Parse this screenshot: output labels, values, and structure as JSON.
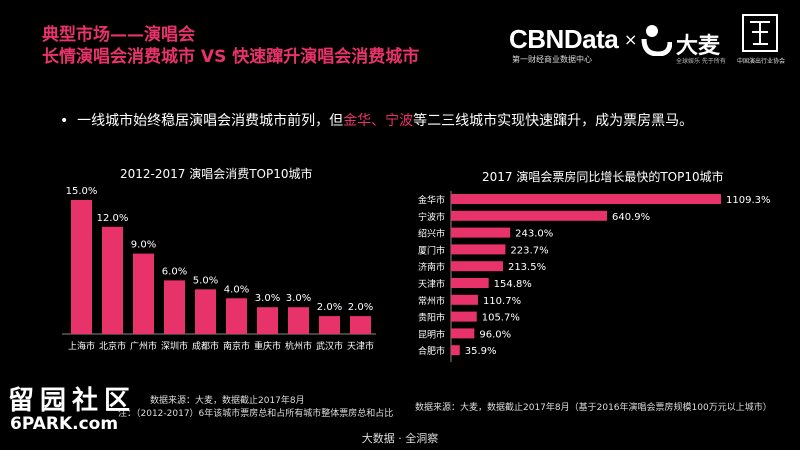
{
  "header": {
    "title_line1": "典型市场——演唱会",
    "title_line2": "长情演唱会消费城市 VS 快速蹿升演唱会消费城市"
  },
  "logos": {
    "cbn_name": "CBNData",
    "cbn_sub": "第一财经商业数据中心",
    "times": "×",
    "damai_name": "大麦",
    "damai_sub": "全球娱乐 先于所有",
    "association_sub": "中国演出行业协会"
  },
  "bullet": {
    "before": "一线城市始终稳居演唱会消费城市前列，但",
    "highlight1": "金华",
    "sep": "、",
    "highlight2": "宁波",
    "after": "等二三线城市实现快速蹿升，成为票房黑马。"
  },
  "colors": {
    "accent": "#e8336a",
    "bar": "#e8336a",
    "background": "#000000"
  },
  "chart_data": [
    {
      "type": "bar",
      "title": "2012-2017 演唱会消费TOP10城市",
      "categories": [
        "上海市",
        "北京市",
        "广州市",
        "深圳市",
        "成都市",
        "南京市",
        "重庆市",
        "杭州市",
        "武汉市",
        "天津市"
      ],
      "values": [
        15.0,
        12.0,
        9.0,
        6.0,
        5.0,
        4.0,
        3.0,
        3.0,
        2.0,
        2.0
      ],
      "labels": [
        "15.0%",
        "12.0%",
        "9.0%",
        "6.0%",
        "5.0%",
        "4.0%",
        "3.0%",
        "3.0%",
        "2.0%",
        "2.0%"
      ],
      "ylim": [
        0,
        16
      ]
    },
    {
      "type": "bar",
      "orientation": "horizontal",
      "title": "2017 演唱会票房同比增长最快的TOP10城市",
      "categories": [
        "金华市",
        "宁波市",
        "绍兴市",
        "厦门市",
        "济南市",
        "天津市",
        "常州市",
        "贵阳市",
        "昆明市",
        "合肥市"
      ],
      "values": [
        1109.3,
        640.9,
        243.0,
        223.7,
        213.5,
        154.8,
        110.7,
        105.7,
        96.0,
        35.9
      ],
      "labels": [
        "1109.3%",
        "640.9%",
        "243.0%",
        "223.7%",
        "213.5%",
        "154.8%",
        "110.7%",
        "105.7%",
        "96.0%",
        "35.9%"
      ],
      "xlim": [
        0,
        1109.3
      ]
    }
  ],
  "sources": {
    "left_line1": "数据来源：大麦，数据截止2017年8月",
    "left_line2": "注：（2012-2017）6年该城市票房总和占所有城市整体票房总和占比",
    "right": "数据来源：大麦，数据截止2017年8月（基于2016年演唱会票房规模100万元以上城市）"
  },
  "footer": "大数据 · 全洞察",
  "watermark": {
    "line1": "留园社区",
    "line2": "6PARK.com"
  }
}
